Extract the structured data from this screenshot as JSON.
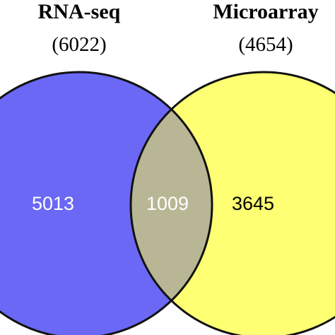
{
  "sets": [
    {
      "name": "RNA-seq",
      "total": "(6022)",
      "color": "#6a68f5"
    },
    {
      "name": "Microarray",
      "total": "(4654)",
      "color": "#ffff73"
    }
  ],
  "regions": {
    "left_only": {
      "count": "5013",
      "text_color": "#ffffff"
    },
    "overlap": {
      "count": "1009",
      "text_color": "#ffffff",
      "color": "#b8b694"
    },
    "right_only": {
      "count": "3645",
      "text_color": "#000000"
    }
  },
  "outline_color": "#111111"
}
